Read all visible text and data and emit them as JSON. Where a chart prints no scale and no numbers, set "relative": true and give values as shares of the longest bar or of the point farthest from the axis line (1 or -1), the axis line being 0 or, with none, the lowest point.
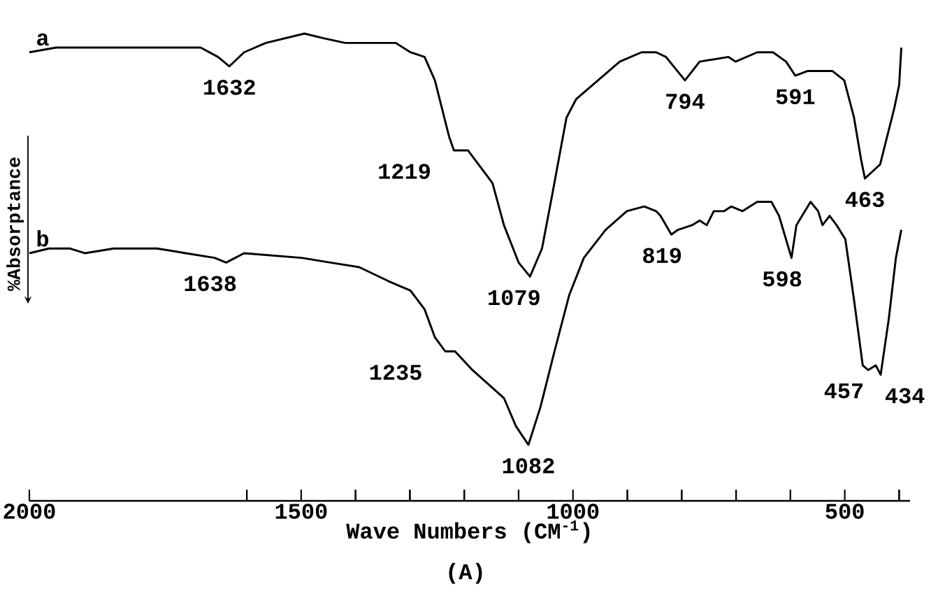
{
  "chart_data": {
    "type": "line",
    "relative": true,
    "xlabel": "Wave Numbers (CM$^{-1}$)",
    "ylabel": "%Absorptance",
    "legend": false,
    "grid": false,
    "marker": "none",
    "line_style": "solid",
    "xlim": [
      2000,
      380
    ],
    "xticks": [
      2000,
      {
        "value": 1600,
        "label": null
      },
      1500,
      {
        "value": 1400,
        "label": null
      },
      {
        "value": 1300,
        "label": null
      },
      {
        "value": 1200,
        "label": null
      },
      {
        "value": 1100,
        "label": null
      },
      1000,
      {
        "value": 900,
        "label": null
      },
      {
        "value": 800,
        "label": null
      },
      {
        "value": 700,
        "label": null
      },
      {
        "value": 600,
        "label": null
      },
      500,
      {
        "value": 400,
        "label": null
      }
    ],
    "series": [
      {
        "name": "a",
        "color": "#000000",
        "x": [
          2000,
          1951,
          1845,
          1738,
          1685,
          1653,
          1632,
          1605,
          1565,
          1494,
          1459,
          1419,
          1379,
          1326,
          1299,
          1273,
          1254,
          1241,
          1228,
          1219,
          1206,
          1193,
          1148,
          1127,
          1100,
          1079,
          1057,
          1039,
          1012,
          994,
          954,
          914,
          874,
          847,
          829,
          794,
          767,
          714,
          701,
          661,
          632,
          608,
          591,
          568,
          523,
          501,
          483,
          470,
          463,
          435,
          409,
          400,
          396
        ],
        "values": [
          0.96,
          0.97,
          0.97,
          0.97,
          0.97,
          0.95,
          0.93,
          0.96,
          0.98,
          1.0,
          0.99,
          0.98,
          0.98,
          0.98,
          0.96,
          0.95,
          0.9,
          0.84,
          0.78,
          0.75,
          0.75,
          0.75,
          0.68,
          0.59,
          0.51,
          0.48,
          0.54,
          0.65,
          0.82,
          0.86,
          0.9,
          0.94,
          0.96,
          0.96,
          0.95,
          0.9,
          0.94,
          0.95,
          0.94,
          0.96,
          0.96,
          0.94,
          0.91,
          0.92,
          0.92,
          0.9,
          0.82,
          0.73,
          0.69,
          0.72,
          0.84,
          0.89,
          0.97
        ]
      },
      {
        "name": "b",
        "color": "#000000",
        "x": [
          2000,
          1964,
          1925,
          1898,
          1845,
          1765,
          1712,
          1659,
          1638,
          1605,
          1499,
          1446,
          1393,
          1339,
          1299,
          1273,
          1254,
          1235,
          1217,
          1185,
          1127,
          1105,
          1082,
          1060,
          1034,
          1007,
          980,
          940,
          901,
          869,
          847,
          839,
          819,
          807,
          781,
          767,
          754,
          741,
          722,
          709,
          688,
          661,
          635,
          621,
          598,
          589,
          563,
          549,
          541,
          528,
          515,
          499,
          483,
          467,
          457,
          443,
          434,
          419,
          406,
          396
        ],
        "values": [
          0.53,
          0.54,
          0.54,
          0.53,
          0.54,
          0.54,
          0.53,
          0.52,
          0.51,
          0.53,
          0.52,
          0.51,
          0.5,
          0.47,
          0.45,
          0.41,
          0.35,
          0.32,
          0.32,
          0.28,
          0.22,
          0.16,
          0.12,
          0.2,
          0.32,
          0.44,
          0.52,
          0.58,
          0.62,
          0.63,
          0.62,
          0.61,
          0.57,
          0.58,
          0.59,
          0.6,
          0.59,
          0.62,
          0.62,
          0.63,
          0.62,
          0.64,
          0.64,
          0.61,
          0.52,
          0.59,
          0.64,
          0.62,
          0.59,
          0.61,
          0.59,
          0.56,
          0.43,
          0.29,
          0.28,
          0.29,
          0.27,
          0.39,
          0.52,
          0.58
        ]
      }
    ],
    "annotations": [
      {
        "text": "1632",
        "x": 1632,
        "y": 0.93
      },
      {
        "text": "1219",
        "x": 1219,
        "y": 0.75
      },
      {
        "text": "1079",
        "x": 1079,
        "y": 0.48
      },
      {
        "text": "794",
        "x": 794,
        "y": 0.9
      },
      {
        "text": "591",
        "x": 591,
        "y": 0.91
      },
      {
        "text": "463",
        "x": 463,
        "y": 0.69
      },
      {
        "text": "1638",
        "x": 1638,
        "y": 0.51
      },
      {
        "text": "1235",
        "x": 1235,
        "y": 0.32
      },
      {
        "text": "1082",
        "x": 1082,
        "y": 0.12
      },
      {
        "text": "819",
        "x": 819,
        "y": 0.57
      },
      {
        "text": "598",
        "x": 598,
        "y": 0.52
      },
      {
        "text": "457",
        "x": 457,
        "y": 0.28
      },
      {
        "text": "434",
        "x": 434,
        "y": 0.27
      },
      "(A)"
    ]
  }
}
